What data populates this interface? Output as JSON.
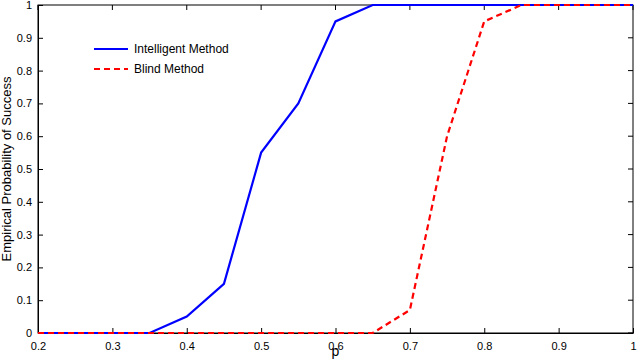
{
  "chart_data": {
    "type": "line",
    "x_label": "p",
    "y_label": "Empirical Probability of Success",
    "x": [
      0.2,
      0.25,
      0.3,
      0.35,
      0.4,
      0.45,
      0.5,
      0.55,
      0.6,
      0.65,
      0.7,
      0.75,
      0.8,
      0.85,
      0.9,
      0.95,
      1
    ],
    "series": [
      {
        "name": "Intelligent Method",
        "color": "#0000ff",
        "line_style": "solid",
        "values": [
          0,
          0,
          0,
          0,
          0.05,
          0.15,
          0.55,
          0.7,
          0.95,
          1,
          1,
          1,
          1,
          1,
          1,
          1,
          1
        ]
      },
      {
        "name": "Blind Method",
        "color": "#ff0000",
        "line_style": "dashed",
        "values": [
          0,
          0,
          0,
          0,
          0,
          0,
          0,
          0,
          0,
          0,
          0.07,
          0.6,
          0.95,
          1,
          1,
          1,
          1
        ]
      }
    ],
    "xlim": [
      0.2,
      1
    ],
    "ylim": [
      0,
      1
    ],
    "xticks": [
      0.2,
      0.3,
      0.4,
      0.5,
      0.6,
      0.7,
      0.8,
      0.9,
      1
    ],
    "yticks": [
      0,
      0.1,
      0.2,
      0.3,
      0.4,
      0.5,
      0.6,
      0.7,
      0.8,
      0.9,
      1
    ],
    "grid": false,
    "legend": "upper left"
  }
}
